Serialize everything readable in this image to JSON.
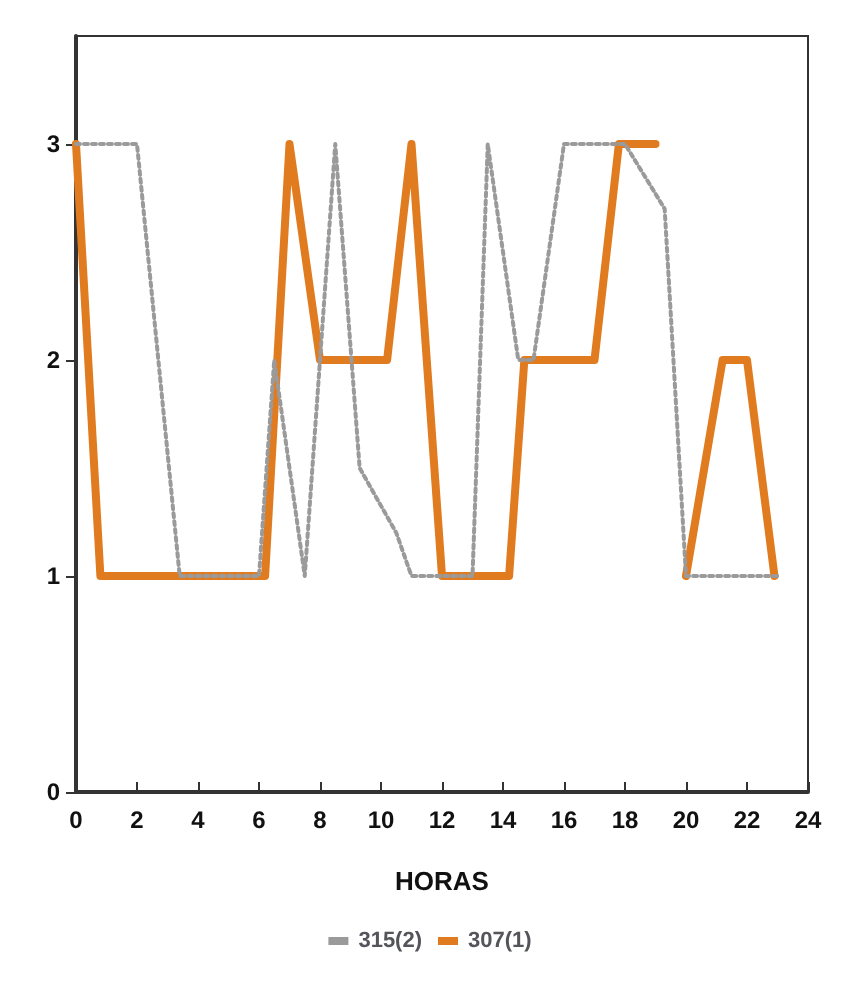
{
  "chart_data": {
    "type": "line",
    "xlabel": "HORAS",
    "xlim": [
      0,
      24
    ],
    "xticks": [
      0,
      2,
      4,
      6,
      8,
      10,
      12,
      14,
      16,
      18,
      20,
      22,
      24
    ],
    "ylim": [
      0,
      3.5
    ],
    "yticks": [
      0,
      1,
      2,
      3
    ],
    "grid": false,
    "legend": "bottom",
    "marker": "none",
    "series": [
      {
        "name": "315(2)",
        "color": "#9a9a9a",
        "line_style": "dotted",
        "x": [
          0,
          2,
          3.4,
          6,
          6.5,
          7.5,
          8.5,
          9.3,
          10.5,
          11,
          12,
          13,
          13.5,
          14.5,
          15,
          16,
          17,
          18,
          19.3,
          20,
          22.5,
          23
        ],
        "values": [
          3,
          3,
          1,
          1,
          2,
          1,
          3,
          1.5,
          1.2,
          1,
          1,
          1,
          3,
          2,
          2,
          3,
          3,
          3,
          2.7,
          1,
          1,
          1
        ]
      },
      {
        "name": "307(1)",
        "color": "#e07b20",
        "line_style": "solid",
        "x": [
          0,
          0.8,
          6.2,
          7,
          8,
          10.2,
          11,
          12,
          14.2,
          14.7,
          15.1,
          17,
          17.8,
          19,
          null,
          20,
          21.2,
          22,
          22.9
        ],
        "values": [
          3,
          1,
          1,
          3,
          2,
          2,
          3,
          1,
          1,
          2,
          2,
          2,
          3,
          3,
          null,
          1,
          2,
          2,
          1
        ]
      }
    ]
  }
}
